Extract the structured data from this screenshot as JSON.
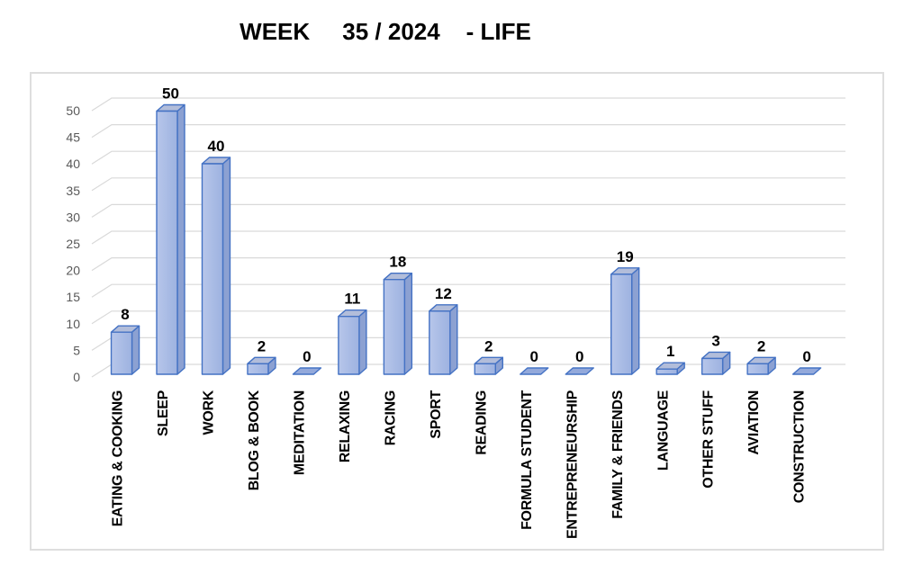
{
  "title": "WEEK     35 / 2024    - LIFE",
  "colors": {
    "bar_front_light": "#B7C6EA",
    "bar_front_dark": "#9DB2E0",
    "bar_side": "#8CA1D2",
    "bar_top": "#B2BDDA",
    "bar_zero": "#93A9DB",
    "bar_border": "#4472C4",
    "gridline": "#D9D9D9",
    "chart_border": "#DEDEDE",
    "axis_text": "#595959",
    "label_text": "#000000",
    "title_text": "#000000"
  },
  "chart_data": {
    "type": "bar",
    "style": "3d",
    "title": "WEEK     35 / 2024    - LIFE",
    "categories": [
      "EATING & COOKING",
      "SLEEP",
      "WORK",
      "BLOG & BOOK",
      "MEDITATION",
      "RELAXING",
      "RACING",
      "SPORT",
      "READING",
      "FORMULA STUDENT",
      "ENTREPRENEURSHIP",
      "FAMILY & FRIENDS",
      "LANGUAGE",
      "OTHER STUFF",
      "AVIATION",
      "CONSTRUCTION"
    ],
    "values": [
      8,
      50,
      40,
      2,
      0,
      11,
      18,
      12,
      2,
      0,
      0,
      19,
      1,
      3,
      2,
      0
    ],
    "yticks": [
      0,
      5,
      10,
      15,
      20,
      25,
      30,
      35,
      40,
      45,
      50
    ],
    "ylim": [
      0,
      50
    ],
    "ytick_step": 5,
    "grid": true,
    "legend": false,
    "value_labels": true,
    "xlabel": "",
    "ylabel": ""
  }
}
